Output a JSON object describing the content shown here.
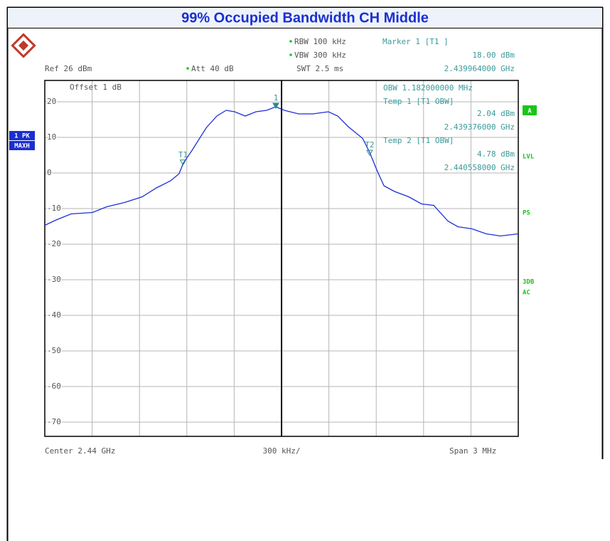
{
  "chart_data": {
    "type": "line",
    "title": "99% Occupied Bandwidth CH Middle",
    "xlim": [
      2.4385,
      2.4415
    ],
    "ylim": [
      -74,
      26
    ],
    "yticks": [
      20,
      10,
      0,
      -10,
      -20,
      -30,
      -40,
      -50,
      -60,
      -70
    ],
    "grid": true,
    "series": [
      {
        "color": "#1f2fd6",
        "x": [
          2.4385,
          2.438577,
          2.438667,
          2.438802,
          2.438892,
          2.439005,
          2.439117,
          2.439207,
          2.439297,
          2.439351,
          2.439378,
          2.439432,
          2.439523,
          2.43959,
          2.439649,
          2.439703,
          2.43977,
          2.439838,
          2.439905,
          2.439964,
          2.440018,
          2.440108,
          2.440198,
          2.440297,
          2.440356,
          2.440423,
          2.440514,
          2.440559,
          2.440604,
          2.440649,
          2.440716,
          2.440806,
          2.440887,
          2.440964,
          2.441054,
          2.441117,
          2.441207,
          2.441297,
          2.441387,
          2.4415
        ],
        "values": [
          -14.7,
          -13.1,
          -11.5,
          -11.1,
          -9.5,
          -8.3,
          -6.7,
          -4.2,
          -2.2,
          -0.2,
          2.8,
          6.3,
          12.7,
          16.0,
          17.6,
          17.2,
          16.0,
          17.2,
          17.6,
          18.6,
          17.6,
          16.6,
          16.6,
          17.2,
          16.0,
          13.0,
          9.7,
          5.7,
          0.8,
          -3.6,
          -5.2,
          -6.7,
          -8.7,
          -9.1,
          -13.5,
          -15.1,
          -15.7,
          -17.1,
          -17.7,
          -17.1
        ]
      }
    ],
    "markers": [
      {
        "label": "1",
        "x": 2.439964,
        "y": 18.0
      },
      {
        "label": "T1",
        "x": 2.439376,
        "y": 2.04
      },
      {
        "label": "T2",
        "x": 2.440558,
        "y": 4.78
      }
    ],
    "header": {
      "rbw": "RBW 100 kHz",
      "vbw": "VBW 300 kHz",
      "swt": "SWT 2.5 ms",
      "marker": "Marker 1 [T1 ]",
      "marker_level": "18.00 dBm",
      "marker_freq": "2.439964000 GHz",
      "ref": "Ref 26 dBm",
      "att": "Att 40 dB"
    },
    "offset": "Offset 1 dB",
    "readout": [
      "OBW 1.182000000 MHz",
      "Temp 1 [T1 OBW]",
      "2.04 dBm",
      "2.439376000 GHz",
      "Temp 2 [T1 OBW]",
      "4.78 dBm",
      "2.440558000 GHz"
    ],
    "left_labels": [
      "1 PK",
      "MAXH"
    ],
    "right_labels": [
      "A",
      "LVL",
      "PS",
      "3DB",
      "AC"
    ],
    "footer": {
      "center": "Center 2.44 GHz",
      "div": "300 kHz/",
      "span": "Span 3 MHz"
    }
  }
}
